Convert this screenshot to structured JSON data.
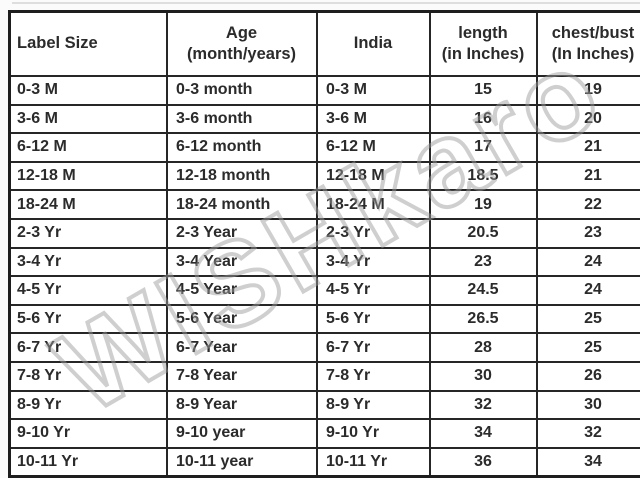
{
  "watermark": {
    "text": "WISHkaro",
    "color": "#9d9d9d"
  },
  "colors": {
    "table_border": "#262626",
    "outer_border": "#1e1e1e",
    "text": "#2b2b2b",
    "background": "#ffffff"
  },
  "header": [
    {
      "line1": "Label Size",
      "line2": ""
    },
    {
      "line1": "Age",
      "line2": "(month/years)"
    },
    {
      "line1": "India",
      "line2": ""
    },
    {
      "line1": "length",
      "line2": "(in Inches)"
    },
    {
      "line1": "chest/bust",
      "line2": "(In Inches)"
    }
  ],
  "chart_data": {
    "type": "table",
    "title": "",
    "columns": [
      "Label Size",
      "Age (month/years)",
      "India",
      "length (in Inches)",
      "chest/bust (In Inches)"
    ],
    "rows": [
      [
        "0-3 M",
        "0-3 month",
        "0-3 M",
        "15",
        "19"
      ],
      [
        "3-6 M",
        "3-6 month",
        "3-6 M",
        "16",
        "20"
      ],
      [
        "6-12 M",
        "6-12 month",
        "6-12 M",
        "17",
        "21"
      ],
      [
        "12-18 M",
        "12-18 month",
        "12-18 M",
        "18.5",
        "21"
      ],
      [
        "18-24 M",
        "18-24 month",
        "18-24 M",
        "19",
        "22"
      ],
      [
        "2-3 Yr",
        "2-3 Year",
        "2-3 Yr",
        "20.5",
        "23"
      ],
      [
        "3-4 Yr",
        "3-4 Year",
        "3-4 Yr",
        "23",
        "24"
      ],
      [
        "4-5 Yr",
        "4-5 Year",
        "4-5 Yr",
        "24.5",
        "24"
      ],
      [
        "5-6 Yr",
        "5-6 Year",
        "5-6 Yr",
        "26.5",
        "25"
      ],
      [
        "6-7 Yr",
        "6-7 Year",
        "6-7 Yr",
        "28",
        "25"
      ],
      [
        "7-8 Yr",
        "7-8 Year",
        "7-8 Yr",
        "30",
        "26"
      ],
      [
        "8-9 Yr",
        "8-9 Year",
        "8-9 Yr",
        "32",
        "30"
      ],
      [
        "9-10 Yr",
        "9-10 year",
        "9-10 Yr",
        "34",
        "32"
      ],
      [
        "10-11 Yr",
        "10-11 year",
        "10-11 Yr",
        "36",
        "34"
      ]
    ]
  }
}
